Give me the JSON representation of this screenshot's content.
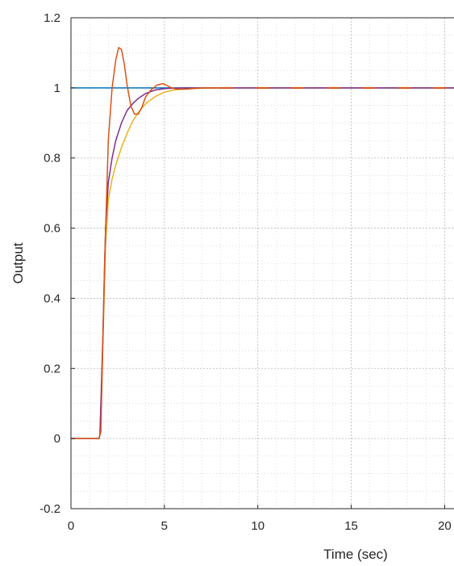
{
  "chart_data": {
    "type": "line",
    "title": "",
    "xlabel": "Time (sec)",
    "ylabel": "Output",
    "xlim": [
      0,
      20.5
    ],
    "ylim": [
      -0.2,
      1.2
    ],
    "xticks": [
      0,
      5,
      10,
      15,
      20
    ],
    "yticks": [
      -0.2,
      0,
      0.2,
      0.4,
      0.6,
      0.8,
      1,
      1.2
    ],
    "xtick_labels": [
      "0",
      "5",
      "10",
      "15",
      "20"
    ],
    "ytick_labels": [
      "-0.2",
      "0",
      "0.2",
      "0.4",
      "0.6",
      "0.8",
      "1",
      "1.2"
    ],
    "grid": true,
    "grid_minor": true,
    "legend": "none",
    "series": [
      {
        "color": "#0072BD",
        "style": "solid",
        "x": [
          0,
          20.5
        ],
        "y": [
          1,
          1
        ]
      },
      {
        "color": "#EDB120",
        "style": "solid",
        "x": [
          0,
          1.5,
          1.55,
          1.7,
          1.85,
          2.0,
          2.2,
          2.4,
          2.7,
          3.0,
          3.3,
          3.6,
          4.0,
          4.5,
          5.0,
          5.5,
          6.0,
          7.0,
          8.0,
          10.0,
          20.5
        ],
        "y": [
          0,
          0,
          0.01,
          0.25,
          0.55,
          0.68,
          0.74,
          0.78,
          0.83,
          0.87,
          0.905,
          0.93,
          0.955,
          0.975,
          0.988,
          0.994,
          0.997,
          0.999,
          1.0,
          1.0,
          1.0
        ]
      },
      {
        "color": "#7E2F8E",
        "style": "solid",
        "x": [
          0,
          1.5,
          1.55,
          1.7,
          1.85,
          2.0,
          2.2,
          2.4,
          2.7,
          3.0,
          3.3,
          3.6,
          4.0,
          4.5,
          5.0,
          5.5,
          6.0,
          7.0,
          8.0,
          10.0,
          20.5
        ],
        "y": [
          0,
          0,
          0.01,
          0.28,
          0.6,
          0.73,
          0.8,
          0.85,
          0.9,
          0.935,
          0.955,
          0.97,
          0.984,
          0.994,
          0.998,
          0.999,
          1.0,
          1.0,
          1.0,
          1.0,
          1.0
        ]
      },
      {
        "color": "#D95319",
        "style": "solid",
        "x": [
          0,
          1.5,
          1.6,
          1.8,
          2.0,
          2.2,
          2.4,
          2.55,
          2.7,
          2.85,
          3.0,
          3.2,
          3.4,
          3.6,
          3.8,
          4.0,
          4.3,
          4.6,
          4.9,
          5.1,
          5.3,
          5.6,
          6.0,
          6.5,
          7.0,
          8.0
        ],
        "y": [
          0,
          0,
          0.02,
          0.5,
          0.85,
          1.0,
          1.08,
          1.115,
          1.11,
          1.07,
          1.01,
          0.95,
          0.925,
          0.925,
          0.945,
          0.975,
          0.995,
          1.008,
          1.012,
          1.008,
          1.002,
          0.997,
          0.996,
          0.998,
          1.0,
          1.0
        ]
      },
      {
        "color": "#D95319",
        "style": "dashed",
        "x": [
          8.0,
          20.5
        ],
        "y": [
          1.0,
          1.0
        ]
      }
    ]
  }
}
